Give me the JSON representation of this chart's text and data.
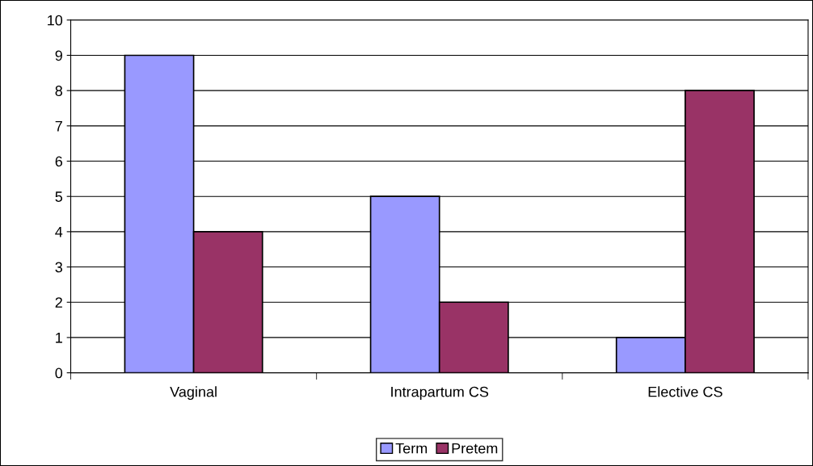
{
  "chart_data": {
    "type": "bar",
    "categories": [
      "Vaginal",
      "Intrapartum CS",
      "Elective CS"
    ],
    "series": [
      {
        "name": "Term",
        "color": "#9999ff",
        "values": [
          9,
          5,
          1
        ]
      },
      {
        "name": "Pretem",
        "color": "#993366",
        "values": [
          4,
          2,
          8
        ]
      }
    ],
    "ylim": [
      0,
      10
    ],
    "yticks": [
      0,
      1,
      2,
      3,
      4,
      5,
      6,
      7,
      8,
      9,
      10
    ],
    "grid": "y",
    "legend": "bottom"
  }
}
